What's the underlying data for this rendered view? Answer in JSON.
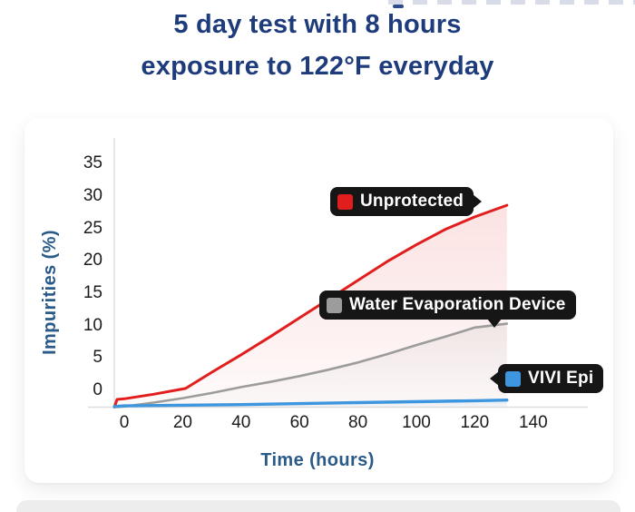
{
  "header": {
    "line1": "5 day test with 8 hours",
    "line2": "exposure to 122°F everyday",
    "color": "#1e3c7c"
  },
  "chart_data": {
    "type": "line",
    "title": "",
    "xlabel": "Time (hours)",
    "ylabel": "Impurities (%)",
    "x_ticks": [
      0,
      20,
      40,
      60,
      80,
      100,
      120,
      140
    ],
    "y_ticks": [
      35,
      30,
      25,
      20,
      15,
      10,
      5,
      0
    ],
    "xlim": [
      -4,
      158
    ],
    "ylim": [
      -3,
      38
    ],
    "grid": false,
    "legend_position": "inline-callout-labels",
    "axis_line_color": "#dedede",
    "tick_color": "#1b1b1b",
    "series": [
      {
        "name": "Unprotected",
        "color": "#e11e1e",
        "line_width": 3,
        "points": {
          "x": [
            -3.4,
            -2.5,
            0,
            10,
            21,
            30,
            40,
            50,
            60,
            70,
            80,
            90,
            100,
            110,
            120,
            131
          ],
          "y": [
            -2.6,
            -1.4,
            -1.3,
            -0.6,
            0.3,
            2.8,
            5.5,
            8.3,
            11.2,
            14.1,
            17.0,
            19.9,
            22.5,
            24.9,
            26.8,
            28.6
          ]
        }
      },
      {
        "name": "Water Evaporation Device",
        "color": "#9c9c9c",
        "line_width": 2.6,
        "points": {
          "x": [
            -3.4,
            0,
            10,
            20,
            30,
            40,
            50,
            60,
            70,
            80,
            90,
            100,
            110,
            120,
            131
          ],
          "y": [
            -2.6,
            -2.5,
            -1.9,
            -1.2,
            -0.4,
            0.5,
            1.3,
            2.2,
            3.2,
            4.3,
            5.6,
            7.0,
            8.3,
            9.7,
            10.3
          ]
        }
      },
      {
        "name": "VIVI Epi",
        "color": "#3e97de",
        "line_width": 3.4,
        "points": {
          "x": [
            -3.4,
            0,
            40,
            80,
            120,
            131
          ],
          "y": [
            -2.5,
            -2.4,
            -2.2,
            -1.9,
            -1.6,
            -1.5
          ]
        }
      }
    ]
  }
}
